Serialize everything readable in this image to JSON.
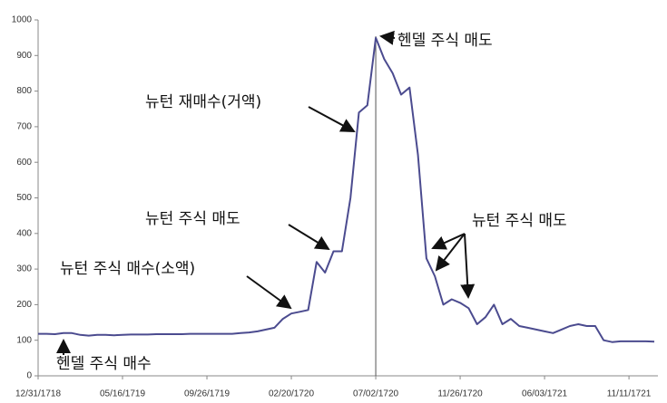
{
  "chart_data": {
    "type": "line",
    "categories": [
      "12/31/1718",
      null,
      null,
      null,
      null,
      null,
      null,
      null,
      null,
      null,
      "05/16/1719",
      null,
      null,
      null,
      null,
      null,
      null,
      null,
      null,
      null,
      "09/26/1719",
      null,
      null,
      null,
      null,
      null,
      null,
      null,
      null,
      null,
      "02/20/1720",
      null,
      null,
      null,
      null,
      null,
      null,
      null,
      null,
      null,
      "07/02/1720",
      null,
      null,
      null,
      null,
      null,
      null,
      null,
      null,
      null,
      "11/26/1720",
      null,
      null,
      null,
      null,
      null,
      null,
      null,
      null,
      null,
      "06/03/1721",
      null,
      null,
      null,
      null,
      null,
      null,
      null,
      null,
      null,
      "11/11/1721",
      null,
      null,
      null
    ],
    "values": [
      118,
      118,
      117,
      120,
      120,
      115,
      113,
      115,
      115,
      114,
      115,
      116,
      116,
      116,
      117,
      117,
      117,
      117,
      118,
      118,
      118,
      118,
      118,
      118,
      120,
      122,
      125,
      130,
      135,
      160,
      175,
      180,
      185,
      320,
      290,
      350,
      350,
      500,
      740,
      760,
      950,
      890,
      850,
      790,
      810,
      620,
      330,
      280,
      200,
      215,
      205,
      190,
      145,
      165,
      200,
      145,
      160,
      140,
      135,
      130,
      125,
      120,
      130,
      140,
      145,
      140,
      140,
      100,
      95,
      97,
      97,
      97,
      97,
      96
    ],
    "color": "#4b4b8f",
    "ylim": [
      0,
      1000
    ],
    "yticks": [
      0,
      100,
      200,
      300,
      400,
      500,
      600,
      700,
      800,
      900,
      1000
    ],
    "vline": "07/02/1720",
    "annotations": [
      {
        "text": "헨델 주식 매도"
      },
      {
        "text": "뉴턴 재매수(거액)"
      },
      {
        "text": "뉴턴 주식 매도"
      },
      {
        "text": "뉴턴 주식 매수(소액)"
      },
      {
        "text": "뉴턴 주식 매도"
      },
      {
        "text": "헨델 주식 매수"
      }
    ]
  }
}
